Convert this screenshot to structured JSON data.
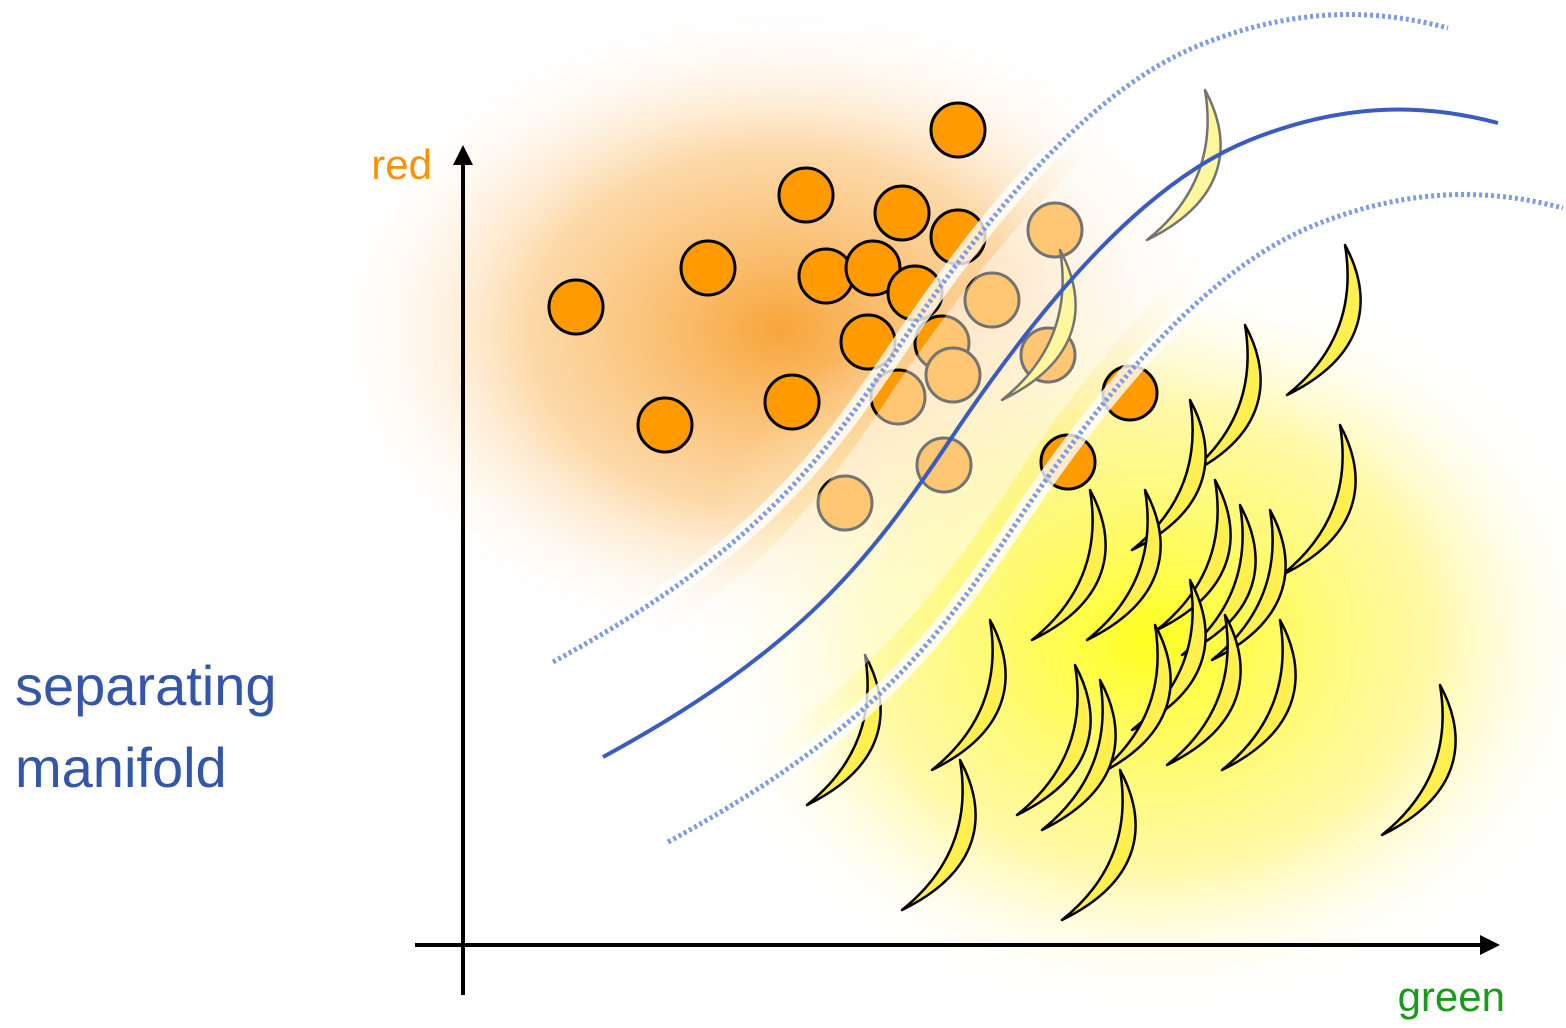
{
  "axes": {
    "y_label": "red",
    "x_label": "green"
  },
  "annotation": {
    "lines": [
      "separating",
      "manifold"
    ]
  }
}
